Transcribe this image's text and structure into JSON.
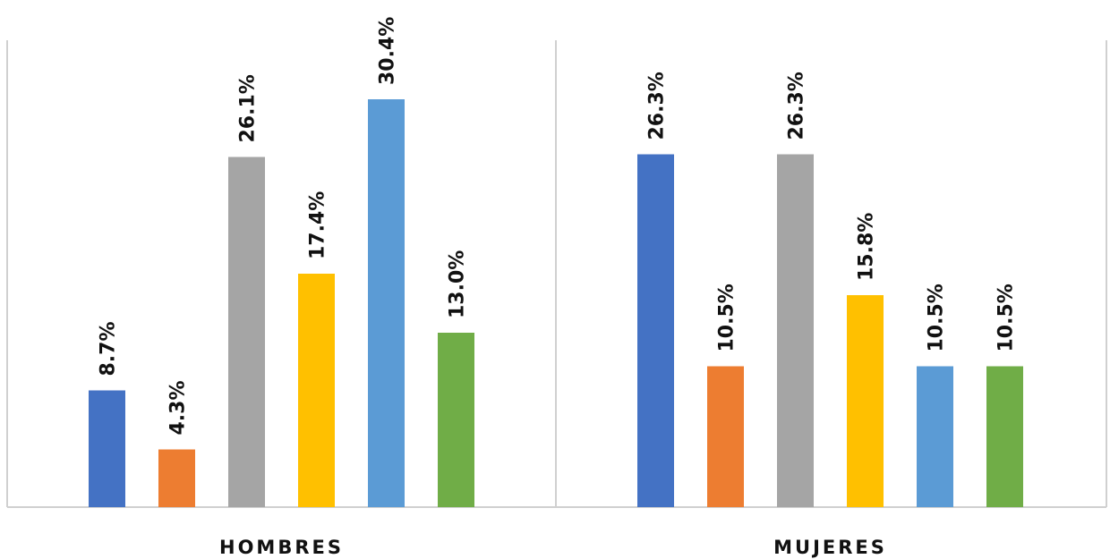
{
  "chart_data": {
    "type": "bar",
    "title": "",
    "xlabel": "",
    "ylabel": "",
    "ylim": [
      0,
      34.7
    ],
    "grid": false,
    "legend": "none",
    "categories": [
      "HOMBRES",
      "MUJERES"
    ],
    "series": [
      {
        "color": "#4472C4",
        "values": [
          8.7,
          26.3
        ],
        "labels": [
          "8.7%",
          "26.3%"
        ]
      },
      {
        "color": "#ED7D31",
        "values": [
          4.3,
          10.5
        ],
        "labels": [
          "4.3%",
          "10.5%"
        ]
      },
      {
        "color": "#A5A5A5",
        "values": [
          26.1,
          26.3
        ],
        "labels": [
          "26.1%",
          "26.3%"
        ]
      },
      {
        "color": "#FFC000",
        "values": [
          17.4,
          15.8
        ],
        "labels": [
          "17.4%",
          "15.8%"
        ]
      },
      {
        "color": "#5B9BD5",
        "values": [
          30.4,
          10.5
        ],
        "labels": [
          "30.4%",
          "10.5%"
        ]
      },
      {
        "color": "#70AD47",
        "values": [
          13.0,
          10.5
        ],
        "labels": [
          "13.0%",
          "10.5%"
        ]
      }
    ]
  }
}
